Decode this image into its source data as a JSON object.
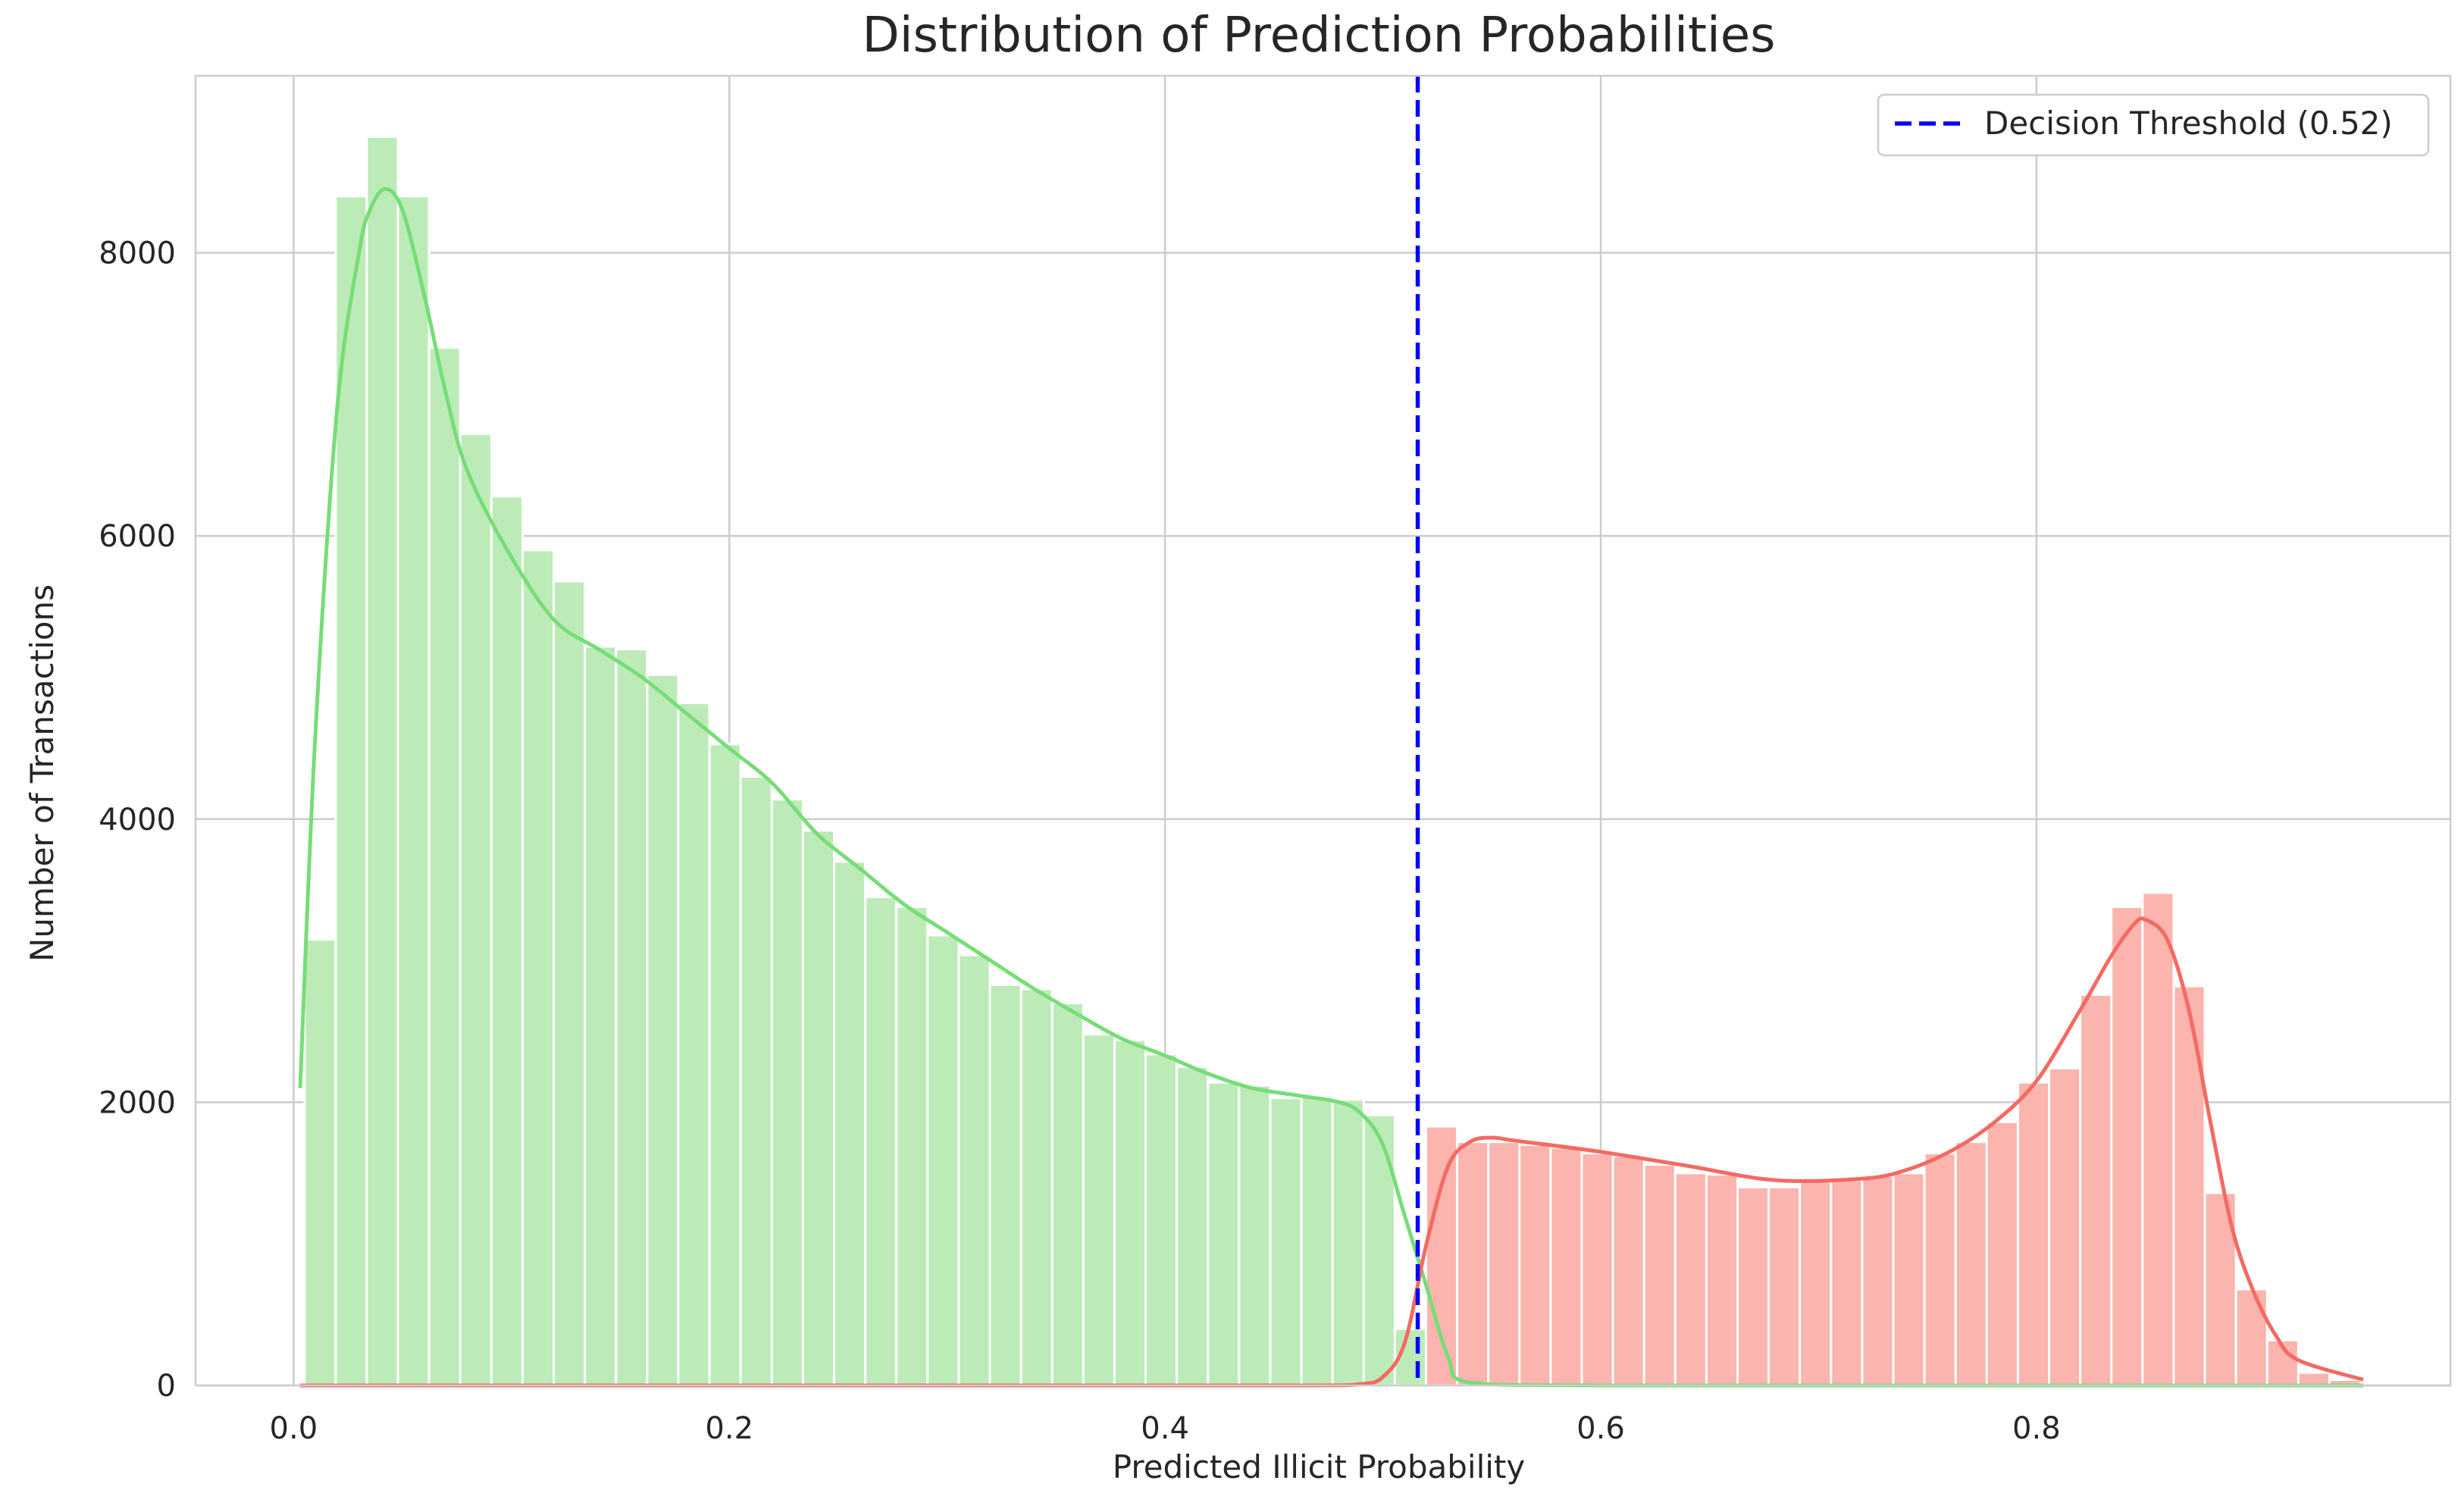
{
  "chart_data": {
    "type": "bar",
    "title": "Distribution of Prediction Probabilities",
    "xlabel": "Predicted Illicit Probability",
    "ylabel": "Number of Transactions",
    "xlim": [
      -0.045,
      0.99
    ],
    "ylim": [
      0,
      9250
    ],
    "x_ticks": [
      "0.0",
      "0.2",
      "0.4",
      "0.6",
      "0.8"
    ],
    "y_ticks": [
      "0",
      "2000",
      "4000",
      "6000",
      "8000"
    ],
    "grid": true,
    "legend_position": "top-right",
    "threshold": {
      "name": "Decision Threshold (0.52)",
      "value": 0.516,
      "color": "#0000ff"
    },
    "bin_width": 0.0143,
    "series": [
      {
        "color_fill": "#bdebb8",
        "color_line": "#77dd77",
        "bins_start": [
          0.005,
          0.0193,
          0.0336,
          0.0479,
          0.0622,
          0.0765,
          0.0908,
          0.1051,
          0.1194,
          0.1337,
          0.148,
          0.1623,
          0.1766,
          0.1909,
          0.2052,
          0.2195,
          0.2338,
          0.2481,
          0.2624,
          0.2767,
          0.291,
          0.3053,
          0.3196,
          0.3339,
          0.3482,
          0.3625,
          0.3768,
          0.3911,
          0.4054,
          0.4197,
          0.434,
          0.4483,
          0.4626,
          0.4769,
          0.4912,
          0.5055
        ],
        "counts": [
          3150,
          8400,
          8820,
          8400,
          7330,
          6720,
          6280,
          5900,
          5680,
          5220,
          5200,
          5020,
          4820,
          4530,
          4300,
          4140,
          3920,
          3700,
          3450,
          3380,
          3180,
          3040,
          2830,
          2800,
          2700,
          2480,
          2440,
          2340,
          2250,
          2140,
          2120,
          2030,
          2040,
          2020,
          1910,
          400
        ],
        "kde": {
          "x": [
            0.003,
            0.01,
            0.02,
            0.03,
            0.035,
            0.042,
            0.05,
            0.06,
            0.07,
            0.08,
            0.1,
            0.12,
            0.14,
            0.16,
            0.18,
            0.2,
            0.22,
            0.24,
            0.26,
            0.28,
            0.3,
            0.32,
            0.34,
            0.36,
            0.38,
            0.4,
            0.42,
            0.44,
            0.46,
            0.48,
            0.49,
            0.5,
            0.51,
            0.52,
            0.53,
            0.54,
            0.6,
            0.8,
            0.95
          ],
          "y": [
            2100,
            4600,
            6900,
            8000,
            8300,
            8450,
            8300,
            7700,
            7000,
            6450,
            5850,
            5400,
            5200,
            5000,
            4750,
            4500,
            4250,
            3900,
            3650,
            3400,
            3200,
            3000,
            2800,
            2620,
            2450,
            2330,
            2200,
            2100,
            2050,
            2000,
            1920,
            1700,
            1200,
            700,
            200,
            20,
            0,
            0,
            0
          ]
        }
      },
      {
        "color_fill": "#fbb4ae",
        "color_line": "#f46a62",
        "bins_start": [
          0.5198,
          0.5341,
          0.5484,
          0.5627,
          0.577,
          0.5913,
          0.6056,
          0.6199,
          0.6342,
          0.6485,
          0.6628,
          0.6771,
          0.6914,
          0.7057,
          0.72,
          0.7343,
          0.7486,
          0.7629,
          0.7772,
          0.7915,
          0.8058,
          0.8201,
          0.8344,
          0.8487,
          0.863,
          0.8773,
          0.8916,
          0.9059,
          0.9202,
          0.9345
        ],
        "counts": [
          1830,
          1720,
          1720,
          1700,
          1680,
          1640,
          1620,
          1560,
          1500,
          1490,
          1400,
          1400,
          1440,
          1450,
          1480,
          1500,
          1640,
          1720,
          1860,
          2140,
          2240,
          2760,
          3380,
          3480,
          2820,
          1360,
          680,
          320,
          90,
          40
        ],
        "kde": {
          "x": [
            0.003,
            0.4,
            0.47,
            0.49,
            0.5,
            0.51,
            0.52,
            0.53,
            0.54,
            0.55,
            0.56,
            0.6,
            0.64,
            0.68,
            0.72,
            0.74,
            0.76,
            0.78,
            0.8,
            0.82,
            0.835,
            0.845,
            0.85,
            0.86,
            0.87,
            0.88,
            0.89,
            0.9,
            0.91,
            0.92,
            0.95
          ],
          "y": [
            0,
            0,
            0,
            10,
            60,
            300,
            1000,
            1550,
            1720,
            1750,
            1730,
            1650,
            1550,
            1450,
            1460,
            1520,
            1650,
            1850,
            2150,
            2650,
            3050,
            3260,
            3290,
            3150,
            2650,
            1850,
            1100,
            650,
            350,
            180,
            40
          ]
        }
      }
    ]
  }
}
